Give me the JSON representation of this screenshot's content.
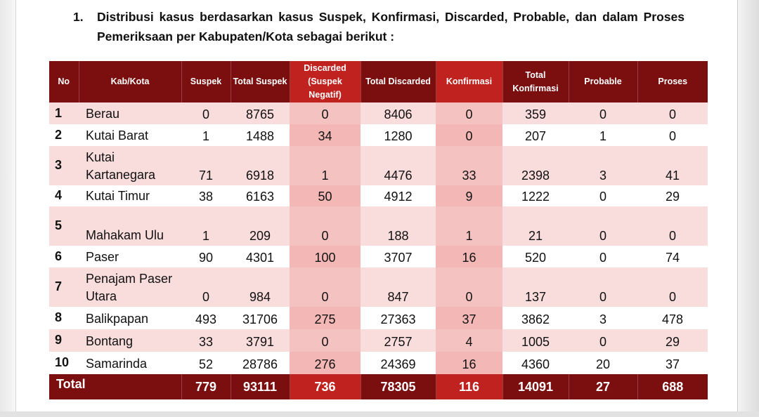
{
  "heading": {
    "number": "1.",
    "text": "Distribusi kasus berdasarkan kasus Suspek, Konfirmasi, Discarded, Probable, dan dalam Proses Pemeriksaan per Kabupaten/Kota sebagai berikut :"
  },
  "table": {
    "headers": {
      "no": "No",
      "kab": "Kab/Kota",
      "suspek": "Suspek",
      "total_suspek": "Total Suspek",
      "discarded": "Discarded (Suspek Negatif)",
      "total_discarded": "Total Discarded",
      "konfirmasi": "Konfirmasi",
      "total_konfirmasi": "Total Konfirmasi",
      "probable": "Probable",
      "proses": "Proses"
    },
    "rows": [
      {
        "no": "1",
        "name": "Berau",
        "suspek": "0",
        "total_suspek": "8765",
        "discarded": "0",
        "total_discarded": "8406",
        "konfirmasi": "0",
        "total_konfirmasi": "359",
        "probable": "0",
        "proses": "0"
      },
      {
        "no": "2",
        "name": "Kutai Barat",
        "suspek": "1",
        "total_suspek": "1488",
        "discarded": "34",
        "total_discarded": "1280",
        "konfirmasi": "0",
        "total_konfirmasi": "207",
        "probable": "1",
        "proses": "0"
      },
      {
        "no": "3",
        "name": "Kutai Kartanegara",
        "suspek": "71",
        "total_suspek": "6918",
        "discarded": "1",
        "total_discarded": "4476",
        "konfirmasi": "33",
        "total_konfirmasi": "2398",
        "probable": "3",
        "proses": "41"
      },
      {
        "no": "4",
        "name": "Kutai Timur",
        "suspek": "38",
        "total_suspek": "6163",
        "discarded": "50",
        "total_discarded": "4912",
        "konfirmasi": "9",
        "total_konfirmasi": "1222",
        "probable": "0",
        "proses": "29"
      },
      {
        "no": "5",
        "name": "Mahakam Ulu",
        "suspek": "1",
        "total_suspek": "209",
        "discarded": "0",
        "total_discarded": "188",
        "konfirmasi": "1",
        "total_konfirmasi": "21",
        "probable": "0",
        "proses": "0"
      },
      {
        "no": "6",
        "name": "Paser",
        "suspek": "90",
        "total_suspek": "4301",
        "discarded": "100",
        "total_discarded": "3707",
        "konfirmasi": "16",
        "total_konfirmasi": "520",
        "probable": "0",
        "proses": "74"
      },
      {
        "no": "7",
        "name": "Penajam Paser Utara",
        "suspek": "0",
        "total_suspek": "984",
        "discarded": "0",
        "total_discarded": "847",
        "konfirmasi": "0",
        "total_konfirmasi": "137",
        "probable": "0",
        "proses": "0"
      },
      {
        "no": "8",
        "name": "Balikpapan",
        "suspek": "493",
        "total_suspek": "31706",
        "discarded": "275",
        "total_discarded": "27363",
        "konfirmasi": "37",
        "total_konfirmasi": "3862",
        "probable": "3",
        "proses": "478"
      },
      {
        "no": "9",
        "name": "Bontang",
        "suspek": "33",
        "total_suspek": "3791",
        "discarded": "0",
        "total_discarded": "2757",
        "konfirmasi": "4",
        "total_konfirmasi": "1005",
        "probable": "0",
        "proses": "29"
      },
      {
        "no": "10",
        "name": "Samarinda",
        "suspek": "52",
        "total_suspek": "28786",
        "discarded": "276",
        "total_discarded": "24369",
        "konfirmasi": "16",
        "total_konfirmasi": "4360",
        "probable": "20",
        "proses": "37"
      }
    ],
    "total": {
      "label": "Total",
      "suspek": "779",
      "total_suspek": "93111",
      "discarded": "736",
      "total_discarded": "78305",
      "konfirmasi": "116",
      "total_konfirmasi": "14091",
      "probable": "27",
      "proses": "688"
    }
  },
  "colors": {
    "header_dark_red": "#7b0f0f",
    "header_highlight_red": "#c0221f",
    "row_pink": "#f9dcdc",
    "column_highlight_pink": "#f4c3c1"
  }
}
